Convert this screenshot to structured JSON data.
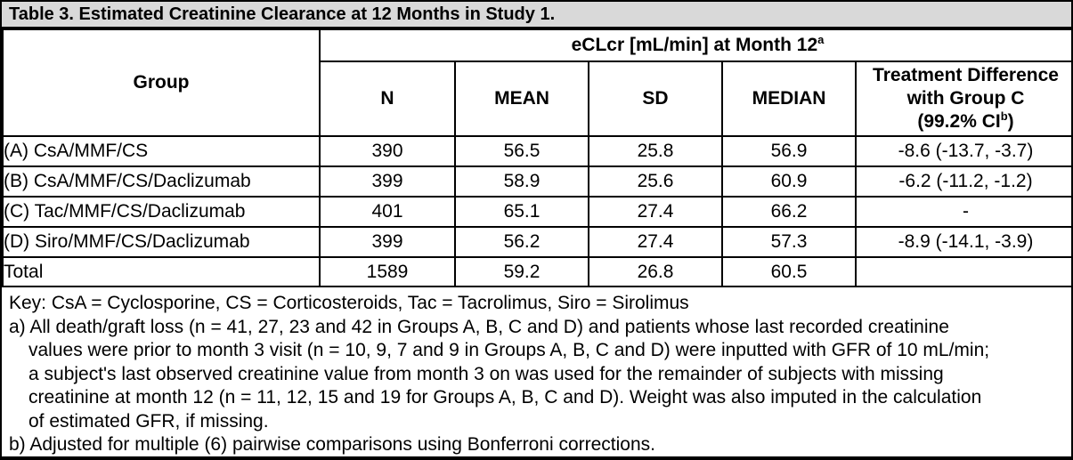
{
  "title": "Table 3. Estimated Creatinine Clearance at 12 Months in Study 1.",
  "colors": {
    "title_bg": "#d9d9d9",
    "border": "#000000",
    "background": "#ffffff",
    "text": "#000000"
  },
  "table": {
    "group_header": "Group",
    "span_header": {
      "text": "eCLcr [mL/min] at Month 12",
      "superscript": "a"
    },
    "stat_columns": [
      "N",
      "MEAN",
      "SD",
      "MEDIAN"
    ],
    "treatment_diff_header": {
      "line1": "Treatment Difference",
      "line2": "with Group C",
      "line3_prefix": "(99.2% CI",
      "line3_sup": "b",
      "line3_suffix": ")"
    },
    "rows": [
      {
        "group": "(A) CsA/MMF/CS",
        "n": "390",
        "mean": "56.5",
        "sd": "25.8",
        "median": "56.9",
        "diff": "-8.6 (-13.7, -3.7)"
      },
      {
        "group": "(B) CsA/MMF/CS/Daclizumab",
        "n": "399",
        "mean": "58.9",
        "sd": "25.6",
        "median": "60.9",
        "diff": "-6.2 (-11.2, -1.2)"
      },
      {
        "group": "(C) Tac/MMF/CS/Daclizumab",
        "n": "401",
        "mean": "65.1",
        "sd": "27.4",
        "median": "66.2",
        "diff": "-"
      },
      {
        "group": "(D) Siro/MMF/CS/Daclizumab",
        "n": "399",
        "mean": "56.2",
        "sd": "27.4",
        "median": "57.3",
        "diff": "-8.9 (-14.1, -3.9)"
      }
    ],
    "total_row": {
      "group": "Total",
      "n": "1589",
      "mean": "59.2",
      "sd": "26.8",
      "median": "60.5",
      "diff": ""
    }
  },
  "footnotes": {
    "lines": [
      {
        "text": "Key: CsA = Cyclosporine, CS = Corticosteroids, Tac = Tacrolimus, Siro = Sirolimus",
        "indent": false
      },
      {
        "text": "a) All death/graft loss (n = 41, 27, 23 and 42 in Groups A, B, C and D) and patients whose last recorded creatinine",
        "indent": false
      },
      {
        "text": "values were prior to month 3 visit (n = 10, 9, 7 and 9 in Groups A, B, C and D) were inputted with GFR of 10 mL/min;",
        "indent": true
      },
      {
        "text": "a subject's last observed creatinine value from month 3 on was used for the remainder of subjects with missing",
        "indent": true
      },
      {
        "text": "creatinine at month 12 (n = 11, 12, 15 and 19 for Groups A, B, C and D). Weight was also imputed in the calculation",
        "indent": true
      },
      {
        "text": "of estimated GFR, if missing.",
        "indent": true
      },
      {
        "text": "b) Adjusted for multiple (6) pairwise comparisons using Bonferroni corrections.",
        "indent": false
      }
    ]
  }
}
